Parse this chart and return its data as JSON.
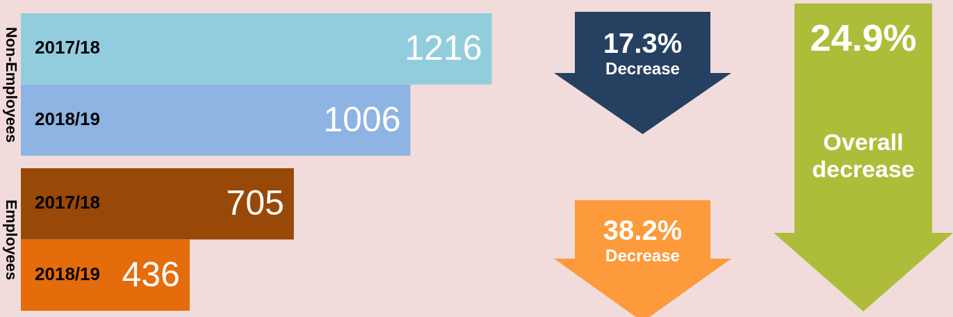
{
  "chart_data": {
    "type": "bar",
    "orientation": "horizontal",
    "categories": [
      "Non-Employees",
      "Employees"
    ],
    "series": [
      {
        "name": "2017/18",
        "colors": [
          "#92cddd",
          "#984807"
        ],
        "values": [
          1216,
          705
        ]
      },
      {
        "name": "2018/19",
        "colors": [
          "#8db4e2",
          "#e46c0a"
        ],
        "values": [
          1006,
          436
        ]
      }
    ],
    "data_labels": true,
    "legend": false,
    "annotations": [
      "17.3%\nDecrease",
      "38.2%\nDecrease",
      "24.9%\nOverall\ndecrease"
    ]
  }
}
